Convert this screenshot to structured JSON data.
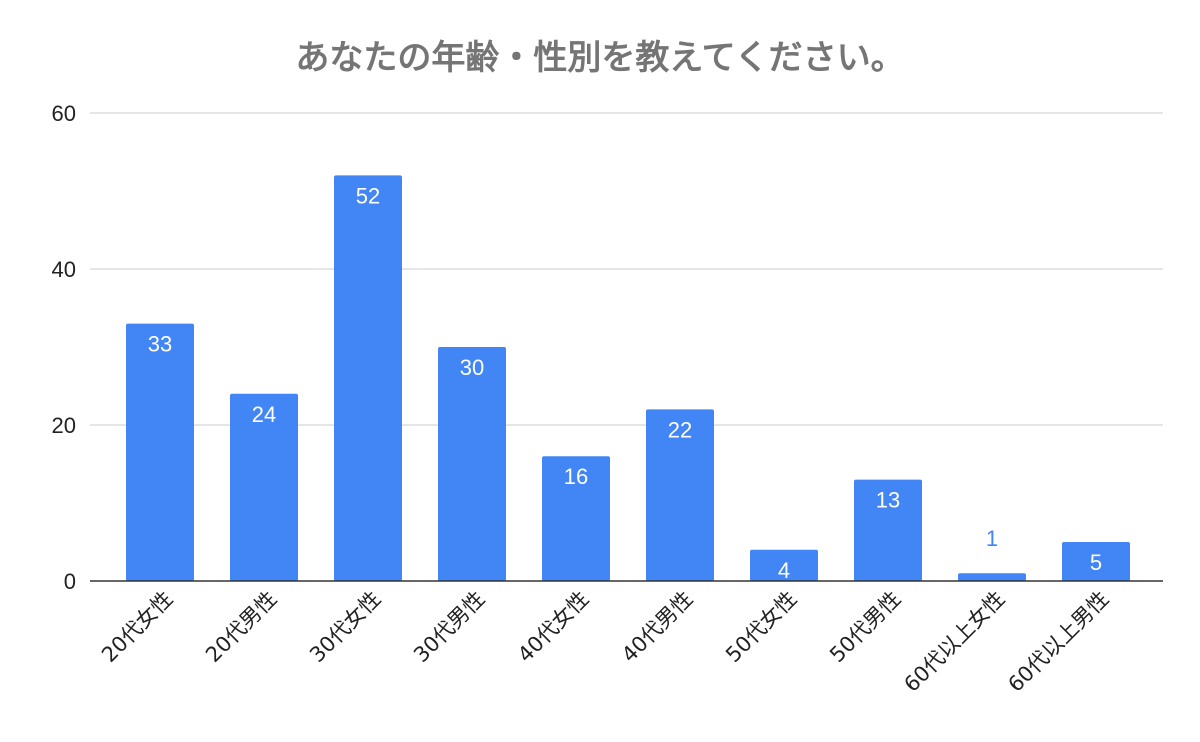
{
  "chart_data": {
    "type": "bar",
    "title": "あなたの年齢・性別を教えてください。",
    "xlabel": "",
    "ylabel": "",
    "categories": [
      "20代女性",
      "20代男性",
      "30代女性",
      "30代男性",
      "40代女性",
      "40代男性",
      "50代女性",
      "50代男性",
      "60代以上女性",
      "60代以上男性"
    ],
    "values": [
      33,
      24,
      52,
      30,
      16,
      22,
      4,
      13,
      1,
      5
    ],
    "ylim": [
      0,
      60
    ],
    "yticks": [
      0,
      20,
      40,
      60
    ],
    "grid": true,
    "legend": "none",
    "colors": {
      "bar": "#4285f4",
      "label_inside": "#ffffff",
      "label_outside": "#4285f4",
      "grid": "#cccccc",
      "axis": "#333333"
    }
  }
}
